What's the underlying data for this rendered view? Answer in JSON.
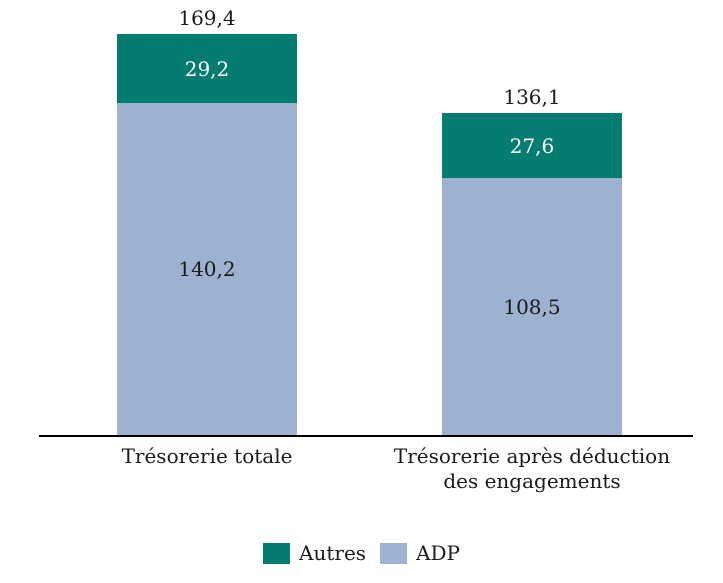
{
  "chart_data": {
    "type": "bar",
    "stacked": true,
    "title": "",
    "xlabel": "",
    "ylabel": "",
    "grid": false,
    "legend_position": "bottom",
    "categories": [
      "Trésorerie totale",
      "Trésorerie après déduction des engagements"
    ],
    "series": [
      {
        "name": "Autres",
        "color": "#047c70",
        "label_color": "#ffffff",
        "values": [
          29.2,
          27.6
        ],
        "value_labels": [
          "29,2",
          "27,6"
        ]
      },
      {
        "name": "ADP",
        "color": "#9db1d0",
        "label_color": "#1a1a1a",
        "values": [
          140.2,
          108.5
        ],
        "value_labels": [
          "140,2",
          "108,5"
        ]
      }
    ],
    "totals": [
      169.4,
      136.1
    ],
    "total_labels": [
      "169,4",
      "136,1"
    ]
  },
  "legend": {
    "items": [
      {
        "label": "Autres",
        "color": "#047c70"
      },
      {
        "label": "ADP",
        "color": "#9db1d0"
      }
    ]
  },
  "colors": {
    "background": "#ffffff",
    "text": "#1a1a1a",
    "axis": "#000000"
  }
}
